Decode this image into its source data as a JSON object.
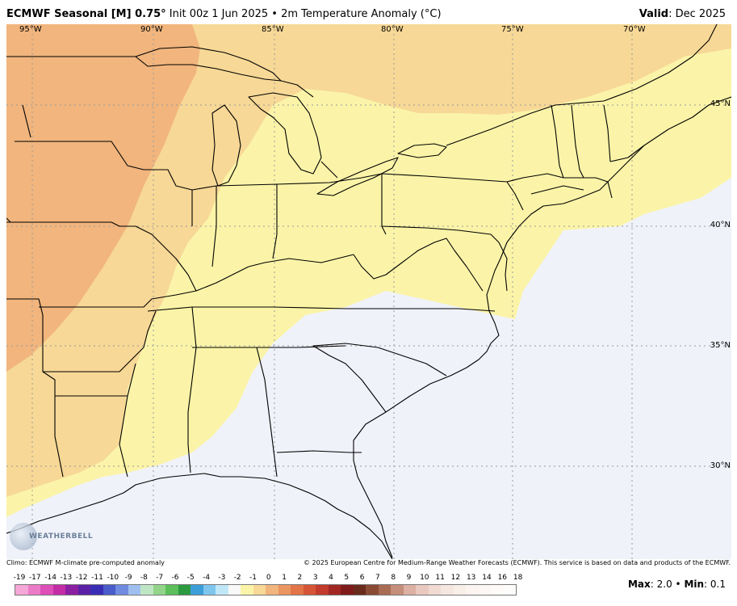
{
  "header": {
    "model": "ECMWF Seasonal [M] 0.75",
    "degree": "°",
    "init": "Init 00z 1 Jun 2025",
    "bullet": "•",
    "product": "2m Temperature Anomaly (°C)",
    "valid_label": "Valid",
    "valid_value": ": Dec 2025"
  },
  "map": {
    "colors": {
      "ocean_background": "#f0f2fa",
      "near_normal": "#f0f2fa",
      "anomaly_0_to_1": "#fbf4a8",
      "anomaly_1_to_2": "#f7d896",
      "anomaly_2_plus": "#f1b57d",
      "borders": "#000000",
      "gridlines": "#9a9a9a"
    },
    "longitude_labels": [
      "95°W",
      "90°W",
      "85°W",
      "80°W",
      "75°W",
      "70°W"
    ],
    "latitude_labels": [
      "45°N",
      "40°N",
      "35°N",
      "30°N"
    ]
  },
  "footer": {
    "climo": "Climo: ECMWF M-climate pre-computed anomaly",
    "copyright": "© 2025 European Centre for Medium-Range Weather Forecasts (ECMWF). This service is based on data and products of the ECMWF."
  },
  "logo": {
    "text": "WEATHERBELL"
  },
  "colorbar": {
    "ticks": [
      "-19",
      "-17",
      "-14",
      "-13",
      "-12",
      "-11",
      "-10",
      "-9",
      "-8",
      "-7",
      "-6",
      "-5",
      "-4",
      "-3",
      "-2",
      "-1",
      "0",
      "1",
      "2",
      "3",
      "4",
      "5",
      "6",
      "7",
      "8",
      "9",
      "10",
      "11",
      "12",
      "13",
      "14",
      "16",
      "18"
    ],
    "colors": [
      "#f5a7d8",
      "#ec7bc7",
      "#dd4eb7",
      "#c42ca6",
      "#8b1fa1",
      "#5b20a6",
      "#3a2db5",
      "#4a5cc9",
      "#6f8ce0",
      "#9fc0ef",
      "#bfe6c4",
      "#92d58a",
      "#5cbf5a",
      "#2c9a3f",
      "#3c9fd8",
      "#7fc6ef",
      "#c0e7f8",
      "#f8f8f8",
      "#fbf4a8",
      "#f7d896",
      "#f1b57d",
      "#eb9560",
      "#e27447",
      "#d65436",
      "#c23a2c",
      "#a12723",
      "#7f1b1a",
      "#6a2b1c",
      "#8a4a34",
      "#a86b53",
      "#c58e7a",
      "#dcb0a2",
      "#e9c9bf",
      "#f0dad2",
      "#f5e6e0",
      "#f9efe9",
      "#fbf4f0",
      "#fcf7f4",
      "#fdfaf8",
      "#fefcfb"
    ]
  },
  "maxmin": {
    "max_label": "Max",
    "max_value": ": 2.0",
    "sep": " • ",
    "min_label": "Min",
    "min_value": ": 0.1"
  }
}
